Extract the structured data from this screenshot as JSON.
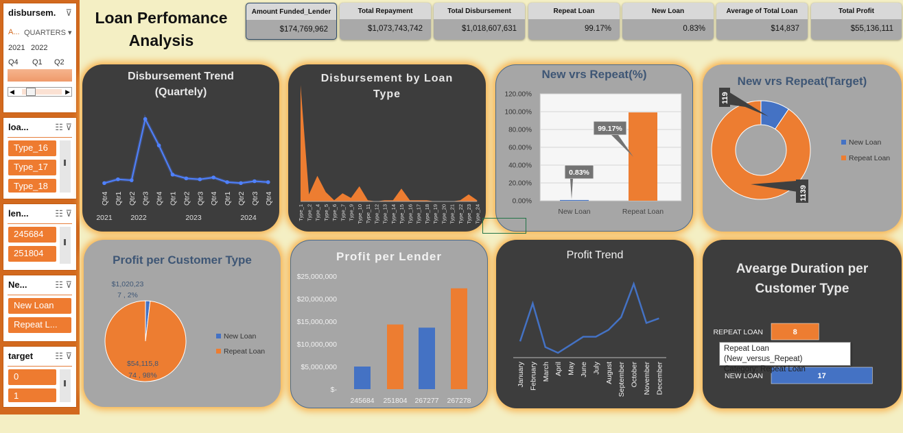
{
  "title": "Loan Perfomance Analysis",
  "slicers": {
    "date": {
      "header": "disbursem...",
      "level_a": "A...",
      "level_b": "QUARTERS",
      "years": [
        "2021",
        "2022"
      ],
      "quarters": [
        "Q4",
        "Q1",
        "Q2"
      ]
    },
    "loan_type": {
      "header": "loa...",
      "items": [
        "Type_16",
        "Type_17",
        "Type_18"
      ]
    },
    "lender": {
      "header": "len...",
      "items": [
        "245684",
        "251804"
      ]
    },
    "new_repeat": {
      "header": "Ne...",
      "items": [
        "New Loan",
        "Repeat L..."
      ]
    },
    "target": {
      "header": "target",
      "items": [
        "0",
        "1"
      ]
    }
  },
  "kpis": [
    {
      "label": "Amount Funded_Lender",
      "value": "$174,769,962"
    },
    {
      "label": "Total Repayment",
      "value": "$1,073,743,742"
    },
    {
      "label": "Total Disbursement",
      "value": "$1,018,607,631"
    },
    {
      "label": "Repeat Loan",
      "value": "99.17%"
    },
    {
      "label": "New Loan",
      "value": "0.83%"
    },
    {
      "label": "Average of Total Loan",
      "value": "$14,837"
    },
    {
      "label": "Total Profit",
      "value": "$55,136,111"
    }
  ],
  "colors": {
    "blue": "#4472c4",
    "orange": "#ed7d31",
    "bright_blue": "#4f81ff"
  },
  "chart_data": [
    {
      "type": "line",
      "title": "Disbursement Trend (Quartely)",
      "categories": [
        "Qtr4",
        "Qtr1",
        "Qtr2",
        "Qtr3",
        "Qtr4",
        "Qtr1",
        "Qtr2",
        "Qtr3",
        "Qtr4",
        "Qtr1",
        "Qtr2",
        "Qtr3",
        "Qtr4"
      ],
      "years": [
        "2021",
        "2022",
        "2023",
        "2024"
      ],
      "values": [
        2,
        6,
        5,
        70,
        42,
        11,
        7,
        6,
        8,
        3,
        2,
        4,
        3
      ],
      "ylim": [
        0,
        80
      ]
    },
    {
      "type": "area",
      "title": "Disbursement by Loan Type",
      "categories": [
        "Type_1",
        "Type_2",
        "Type_4",
        "Type_5",
        "Type_6",
        "Type_7",
        "Type_9",
        "Type_10",
        "Type_11",
        "Type_12",
        "Type_13",
        "Type_14",
        "Type_15",
        "Type_16",
        "Type_17",
        "Type_18",
        "Type_19",
        "Type_20",
        "Type_21",
        "Type_22",
        "Type_23",
        "Type_24"
      ],
      "values": [
        100,
        6,
        22,
        8,
        1,
        7,
        3,
        13,
        1,
        0,
        1,
        1,
        11,
        1,
        1,
        1,
        0,
        0,
        0,
        1,
        6,
        1
      ],
      "ylim": [
        0,
        100
      ]
    },
    {
      "type": "bar",
      "title": "New vrs Repeat(%)",
      "categories": [
        "New Loan",
        "Repeat Loan"
      ],
      "values": [
        0.83,
        99.17
      ],
      "data_labels": [
        "0.83%",
        "99.17%"
      ],
      "yticks": [
        "0.00%",
        "20.00%",
        "40.00%",
        "60.00%",
        "80.00%",
        "100.00%",
        "120.00%"
      ],
      "ylim": [
        0,
        120
      ]
    },
    {
      "type": "pie",
      "title": "New vrs Repeat(Target)",
      "categories": [
        "New Loan",
        "Repeat Loan"
      ],
      "values": [
        119,
        1139
      ],
      "data_labels": [
        "119",
        "1139"
      ]
    },
    {
      "type": "pie",
      "title": "Profit per Customer Type",
      "categories": [
        "New Loan",
        "Repeat Loan"
      ],
      "values": [
        1020237,
        54115874
      ],
      "data_labels": [
        [
          "$1,020,23",
          "7 , 2%"
        ],
        [
          "$54,115,8",
          "74 , 98%"
        ]
      ]
    },
    {
      "type": "bar",
      "title": "Profit per Lender",
      "categories": [
        "245684",
        "251804",
        "267277",
        "267278"
      ],
      "values": [
        5000000,
        14300000,
        13600000,
        22300000
      ],
      "yticks": [
        "$-",
        "$5,000,000",
        "$10,000,000",
        "$15,000,000",
        "$20,000,000",
        "$25,000,000"
      ],
      "ylim": [
        0,
        25000000
      ]
    },
    {
      "type": "line",
      "title": "Profit Trend",
      "categories": [
        "January",
        "February",
        "March",
        "April",
        "May",
        "June",
        "July",
        "August",
        "September",
        "October",
        "November",
        "December"
      ],
      "values": [
        10,
        43,
        5,
        0,
        7,
        14,
        14,
        20,
        31,
        60,
        26,
        30
      ],
      "ylim": [
        0,
        65
      ]
    },
    {
      "type": "bar",
      "title": "Avearge Duration per Customer Type",
      "categories": [
        "REPEAT LOAN",
        "NEW LOAN"
      ],
      "values": [
        8,
        17
      ],
      "xlim": [
        0,
        18
      ]
    }
  ],
  "tooltip": {
    "line1": "Repeat Loan (New_versus_Repeat)",
    "line2": "Category: Repeat Loan"
  }
}
